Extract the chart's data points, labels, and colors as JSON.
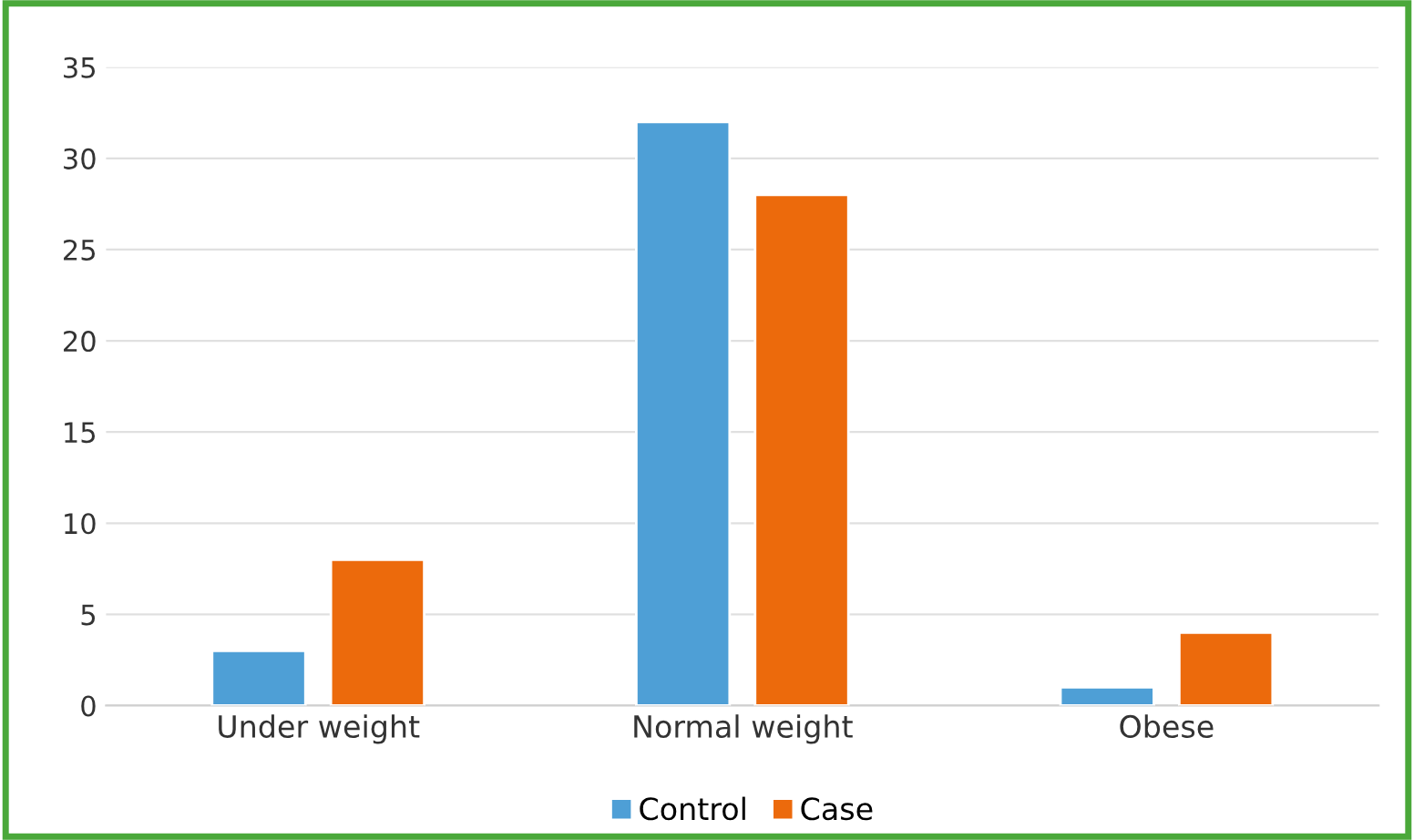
{
  "chart_data": {
    "type": "bar",
    "categories": [
      "Under weight",
      "Normal weight",
      "Obese"
    ],
    "series": [
      {
        "name": "Control",
        "color": "#4e9fd6",
        "values": [
          3,
          32,
          1
        ]
      },
      {
        "name": "Case",
        "color": "#ec6a0c",
        "values": [
          8,
          28,
          4
        ]
      }
    ],
    "ylim": [
      0,
      35
    ],
    "yticks": [
      0,
      5,
      10,
      15,
      20,
      25,
      30,
      35
    ],
    "grid": "y",
    "legend": "bottom"
  }
}
